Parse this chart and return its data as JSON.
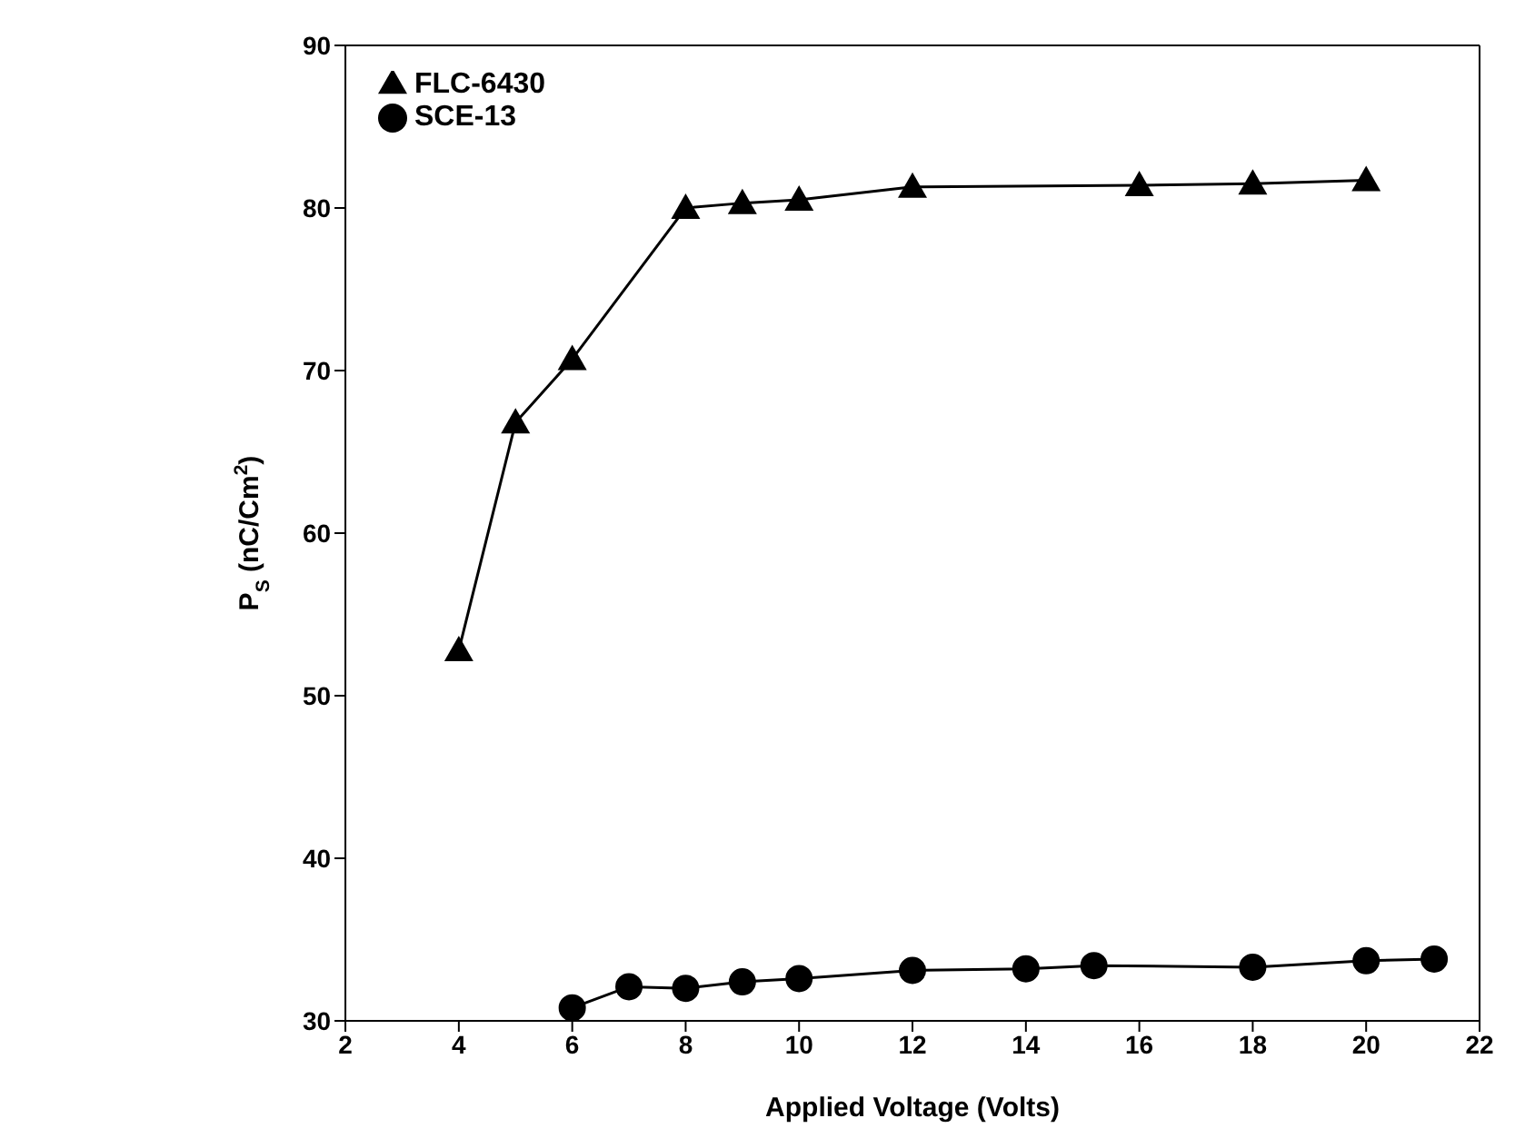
{
  "chart_data": {
    "type": "line",
    "xlabel": "Applied Voltage (Volts)",
    "ylabel": "P$_{S}$ (nC/Cm$^{2}$)",
    "xlim": [
      2,
      22
    ],
    "xticks": [
      2,
      4,
      6,
      8,
      10,
      12,
      14,
      16,
      18,
      20,
      22
    ],
    "ylim": [
      30,
      90
    ],
    "yticks": [
      30,
      40,
      50,
      60,
      70,
      80,
      90
    ],
    "legend": "top left",
    "line_style": "solid",
    "series": [
      {
        "name": "FLC-6430",
        "color": "#000000",
        "marker": "triangle",
        "x": [
          4,
          5,
          6,
          8,
          9,
          10,
          12,
          16,
          18,
          20
        ],
        "values": [
          52.8,
          66.8,
          70.7,
          80,
          80.3,
          80.5,
          81.3,
          81.4,
          81.5,
          81.7
        ]
      },
      {
        "name": "SCE-13",
        "color": "#000000",
        "marker": "circle",
        "x": [
          6,
          7,
          8,
          9,
          10,
          12,
          14,
          15.2,
          18,
          20,
          21.2
        ],
        "values": [
          30.8,
          32.1,
          32,
          32.4,
          32.6,
          33.1,
          33.2,
          33.4,
          33.3,
          33.7,
          33.8
        ]
      }
    ]
  }
}
